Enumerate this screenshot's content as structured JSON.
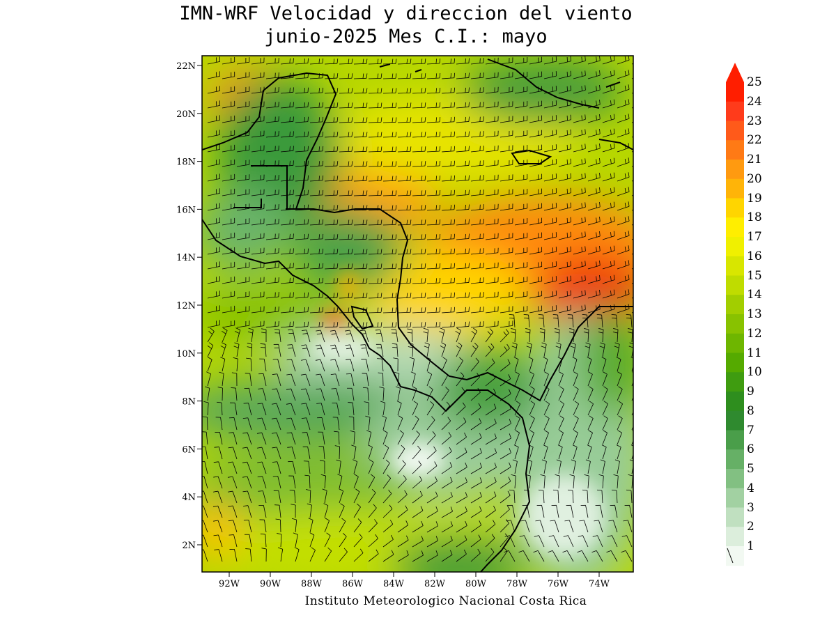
{
  "title": {
    "line1": "IMN-WRF Velocidad y direccion del viento",
    "line2": "junio-2025 Mes C.I.: mayo"
  },
  "credit": "Instituto Meteorologico Nacional Costa Rica",
  "map": {
    "lat_labels": [
      "22N",
      "20N",
      "18N",
      "16N",
      "14N",
      "12N",
      "10N",
      "8N",
      "6N",
      "4N",
      "2N"
    ],
    "lon_labels": [
      "92W",
      "90W",
      "88W",
      "86W",
      "84W",
      "82W",
      "80W",
      "78W",
      "76W",
      "74W"
    ],
    "colors": {
      "sea_low": "#ddf0dd",
      "land": "#3a9a3a",
      "strong_wind": "#e84a18",
      "coastline": "#000000"
    }
  },
  "colorbar": {
    "labels": [
      "25",
      "24",
      "23",
      "22",
      "21",
      "20",
      "19",
      "18",
      "17",
      "16",
      "15",
      "14",
      "13",
      "12",
      "11",
      "10",
      "9",
      "8",
      "7",
      "6",
      "5",
      "4",
      "3",
      "2",
      "1"
    ],
    "colors": [
      "#ff1e00",
      "#ff3b1b",
      "#ff5a1a",
      "#ff7a15",
      "#ff9a10",
      "#ffb408",
      "#ffd500",
      "#ffee00",
      "#f0f000",
      "#d8e600",
      "#bfdc00",
      "#a2ce00",
      "#88c200",
      "#6eb600",
      "#55aa00",
      "#3f9c10",
      "#2e8e1e",
      "#2f8a2f",
      "#4a9e4a",
      "#66b066",
      "#82c082",
      "#a2d1a2",
      "#c0e0c0",
      "#dceedc",
      "#f2f9f2"
    ]
  }
}
